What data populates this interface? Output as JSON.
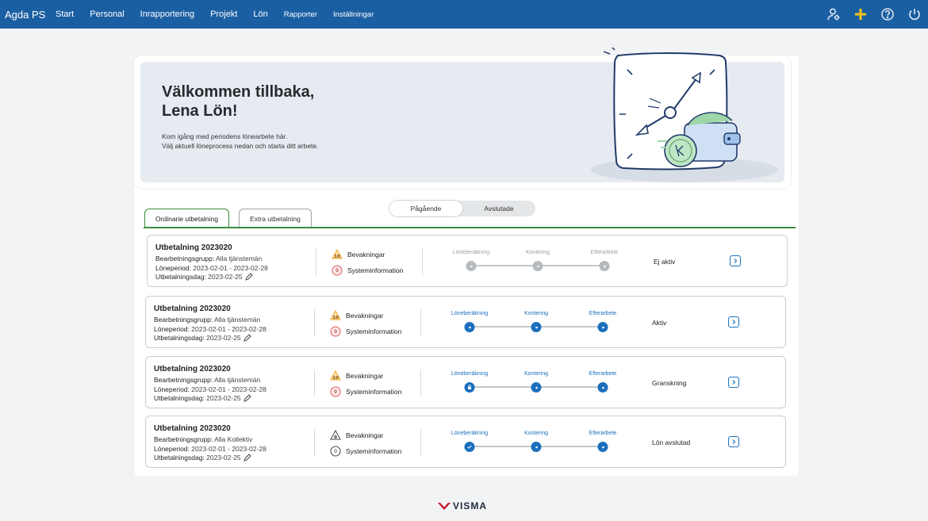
{
  "app": {
    "brand": "Agda PS"
  },
  "nav": {
    "items": [
      "Start",
      "Personal",
      "Inrapportering",
      "Projekt",
      "Lön"
    ],
    "small_items": [
      "Rapporter",
      "Inställningar"
    ],
    "icons": [
      "user-settings-icon",
      "plus-icon",
      "help-icon",
      "power-icon"
    ]
  },
  "hero": {
    "title": "Välkommen tillbaka,\nLena Lön!",
    "text": "Kom igång med periodens lönearbete här.\nVälj aktuell löneprocess nedan och starta ditt arbete."
  },
  "tabs": {
    "ordinarie": "Ordinarie utbetalning",
    "extra": "Extra utbetalning"
  },
  "toggle": {
    "ongoing": "Pågående",
    "finished": "Avslutade"
  },
  "labels": {
    "group": "Bearbetningsgrupp:",
    "period": "Löneperiod:",
    "payday": "Utbetalningsdag:",
    "watch": "Bevakningar",
    "sysinfo": "Systeminformation",
    "step1": "Löneberäkning",
    "step2": "Kontering",
    "step3": "Efterarbete"
  },
  "cards": [
    {
      "title": "Utbetalning 2023020",
      "group": "Alla tjänstemän",
      "period": "2023-02-01 - 2023-02-28",
      "payday": "2023-02-25",
      "watch_count": "10",
      "sys_count": "9",
      "status": "Ej aktiv",
      "state": "inactive"
    },
    {
      "title": "Utbetalning 2023020",
      "group": "Alla tjänstemän",
      "period": "2023-02-01 - 2023-02-28",
      "payday": "2023-02-25",
      "watch_count": "10",
      "sys_count": "9",
      "status": "Aktiv",
      "state": "active"
    },
    {
      "title": "Utbetalning 2023020",
      "group": "Alla tjänstemän",
      "period": "2023-02-01 - 2023-02-28",
      "payday": "2023-02-25",
      "watch_count": "10",
      "sys_count": "9",
      "status": "Granskning",
      "state": "review"
    },
    {
      "title": "Utbetalning 2023020",
      "group": "Alla Kollektiv",
      "period": "2023-02-01 - 2023-02-28",
      "payday": "2023-02-25",
      "watch_count": "0",
      "sys_count": "0",
      "status": "Lön avslutad",
      "state": "done"
    }
  ],
  "footer": {
    "logo": "VISMA"
  },
  "colors": {
    "nav": "#1b5fa3",
    "accent": "#1b6fbd",
    "tab_green": "#3c8c3c",
    "warn": "#f5a623",
    "error": "#e05a5a"
  }
}
